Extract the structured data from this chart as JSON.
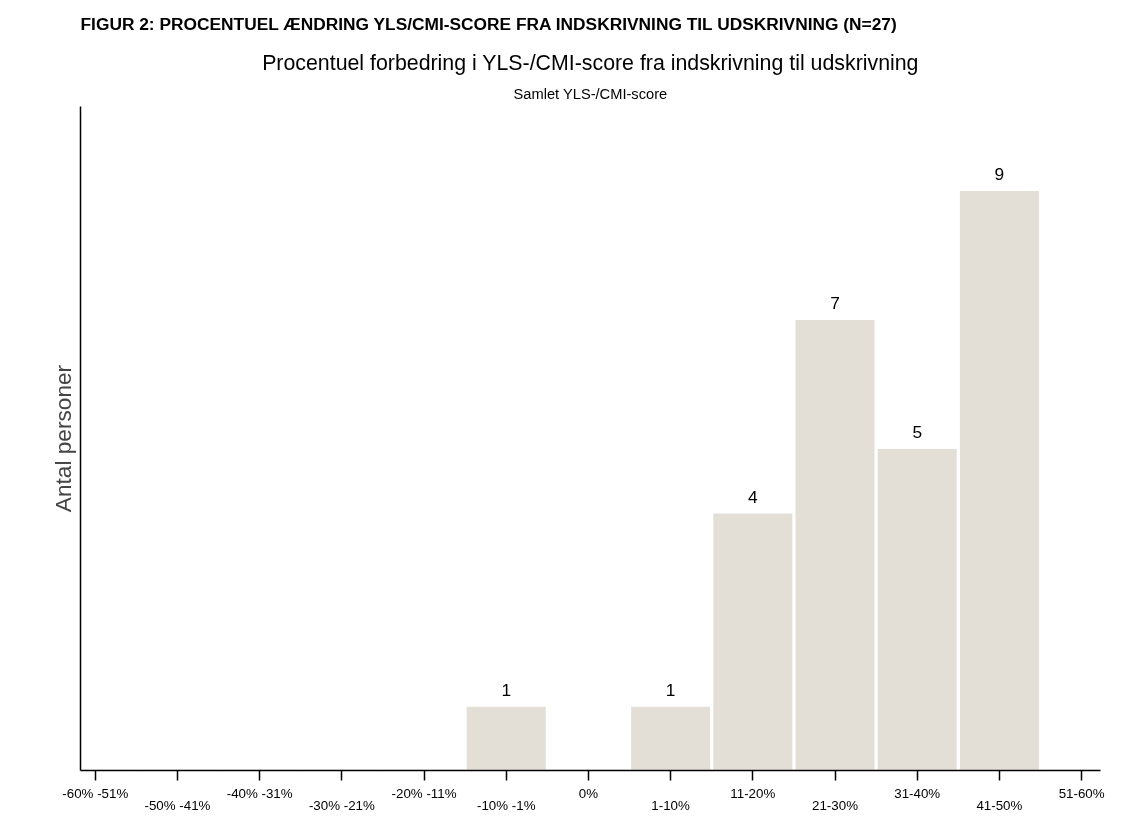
{
  "chart_data": {
    "type": "bar",
    "title": "FIGUR 2: PROCENTUEL ÆNDRING YLS/CMI-SCORE FRA INDSKRIVNING TIL UDSKRIVNING (N=27)",
    "subtitle": "Procentuel forbedring i YLS-/CMI-score fra indskrivning til udskrivning",
    "annotations": [
      "Samlet YLS-/CMI-score"
    ],
    "ylabel": "Antal personer",
    "categories": [
      "-60% -51%",
      "-50% -41%",
      "-40% -31%",
      "-30% -21%",
      "-20% -11%",
      "-10% -1%",
      "0%",
      "1-10%",
      "11-20%",
      "21-30%",
      "31-40%",
      "41-50%",
      "51-60%"
    ],
    "values": [
      0,
      0,
      0,
      0,
      0,
      1,
      0,
      1,
      4,
      7,
      5,
      9,
      0
    ],
    "value_labels": [
      null,
      null,
      null,
      null,
      null,
      "1",
      null,
      "1",
      "4",
      "7",
      "5",
      "9",
      null
    ],
    "color": "#e3dfd6",
    "ylim": [
      0,
      10.3
    ],
    "tick_labels": "x",
    "grid": false
  }
}
